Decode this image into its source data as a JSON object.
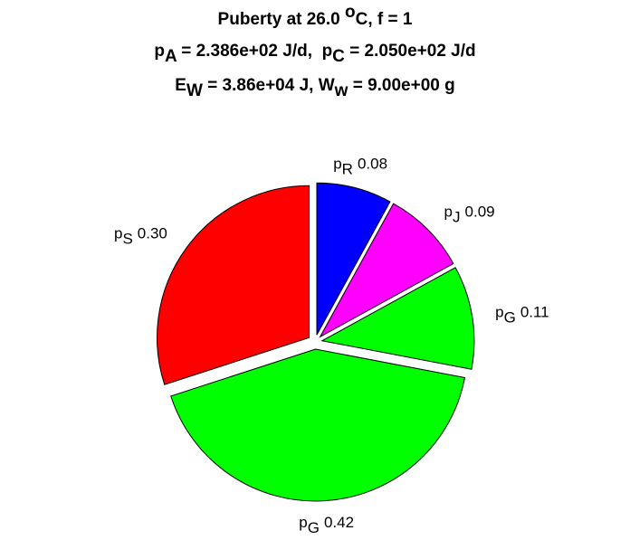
{
  "chart_data": {
    "type": "pie",
    "title": [
      [
        "Puberty at 26.0 ",
        {
          "sup": "o"
        },
        "C, f = 1"
      ],
      [
        "p",
        {
          "sub": "A"
        },
        " = 2.386e+02 J/d,  p",
        {
          "sub": "C"
        },
        " = 2.050e+02 J/d"
      ],
      [
        "E",
        {
          "sub": "W"
        },
        " = 3.86e+04 J, W",
        {
          "sub": "w"
        },
        " = 9.00e+00 g"
      ]
    ],
    "symbol": "p",
    "categories": [
      "R",
      "J",
      "G",
      "G",
      "S"
    ],
    "values": [
      0.08,
      0.09,
      0.11,
      0.42,
      0.3
    ],
    "value_labels": [
      "0.08",
      "0.09",
      "0.11",
      "0.42",
      "0.30"
    ],
    "colors": [
      "#0000ff",
      "#ff00ff",
      "#00ff00",
      "#00ff00",
      "#ff0000"
    ],
    "explode": true
  }
}
